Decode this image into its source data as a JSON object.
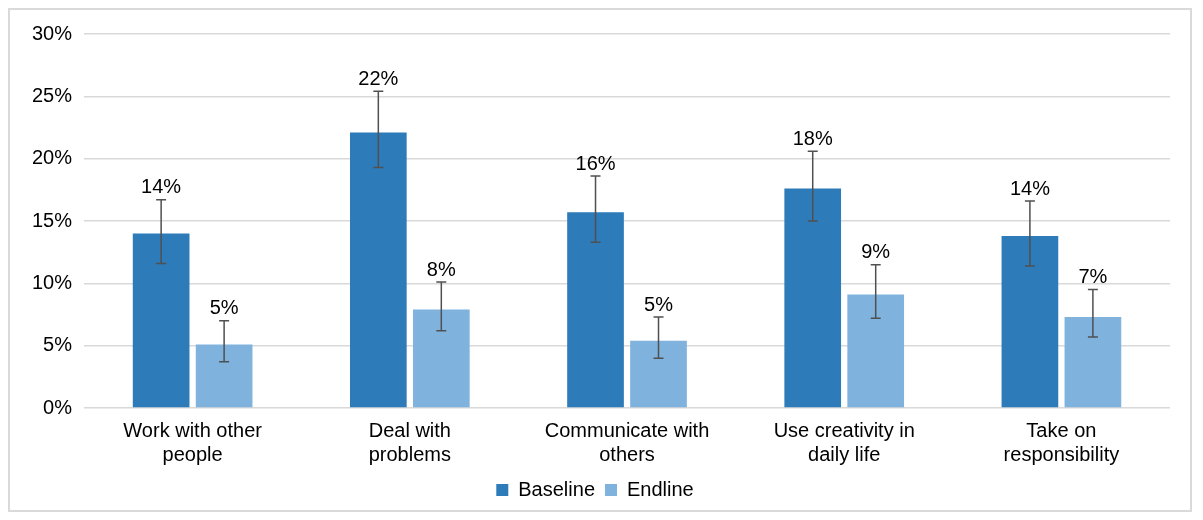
{
  "chart_data": {
    "type": "bar",
    "categories": [
      "Work with other people",
      "Deal with problems",
      "Communicate with others",
      "Use creativity in daily life",
      "Take on responsibility"
    ],
    "series": [
      {
        "name": "Baseline",
        "color": "#2e7bba",
        "values": [
          14.0,
          22.1,
          15.7,
          17.6,
          13.8
        ],
        "errors": [
          [
            11.6,
            16.7
          ],
          [
            19.3,
            25.4
          ],
          [
            13.3,
            18.6
          ],
          [
            15.0,
            20.6
          ],
          [
            11.4,
            16.6
          ]
        ],
        "value_labels": [
          "14%",
          "22%",
          "16%",
          "18%",
          "14%"
        ]
      },
      {
        "name": "Endline",
        "color": "#7fb3de",
        "values": [
          5.1,
          7.9,
          5.4,
          9.1,
          7.3
        ],
        "errors": [
          [
            3.7,
            7.0
          ],
          [
            6.2,
            10.1
          ],
          [
            4.0,
            7.3
          ],
          [
            7.2,
            11.5
          ],
          [
            5.7,
            9.5
          ]
        ],
        "value_labels": [
          "5%",
          "8%",
          "5%",
          "9%",
          "7%"
        ]
      }
    ],
    "ylim": [
      0,
      30
    ],
    "yticks": [
      {
        "value": 0,
        "label": "0%"
      },
      {
        "value": 5,
        "label": "5%"
      },
      {
        "value": 10,
        "label": "10%"
      },
      {
        "value": 15,
        "label": "15%"
      },
      {
        "value": 20,
        "label": "20%"
      },
      {
        "value": 25,
        "label": "25%"
      },
      {
        "value": 30,
        "label": "30%"
      }
    ],
    "grid": "y",
    "legend": "bottom"
  }
}
